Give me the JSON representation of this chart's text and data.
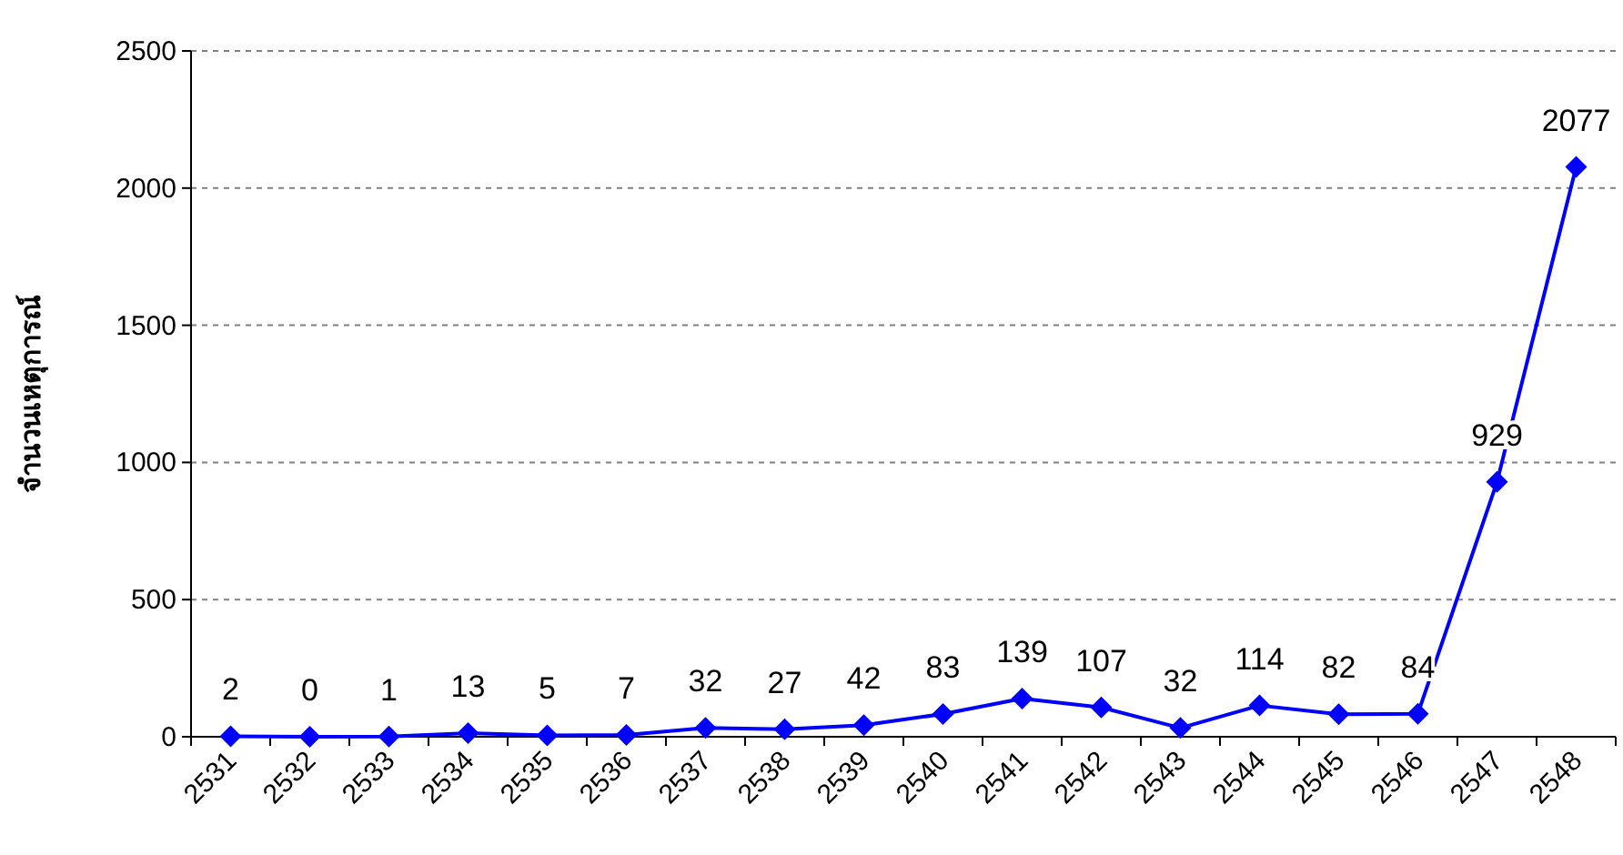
{
  "chart_data": {
    "type": "line",
    "ylabel": "จำนวนเหตุการณ์",
    "categories": [
      "2531",
      "2532",
      "2533",
      "2534",
      "2535",
      "2536",
      "2537",
      "2538",
      "2539",
      "2540",
      "2541",
      "2542",
      "2543",
      "2544",
      "2545",
      "2546",
      "2547",
      "2548"
    ],
    "series": [
      {
        "color": "#0000ff",
        "values": [
          2,
          0,
          1,
          13,
          5,
          7,
          32,
          27,
          42,
          83,
          139,
          107,
          32,
          114,
          82,
          84,
          929,
          2077
        ]
      }
    ],
    "ylim": [
      0,
      2500
    ],
    "yticks": [
      0,
      500,
      1000,
      1500,
      2000,
      2500
    ],
    "grid": "y",
    "marker": "diamond",
    "line_style": "solid",
    "data_labels": true
  }
}
